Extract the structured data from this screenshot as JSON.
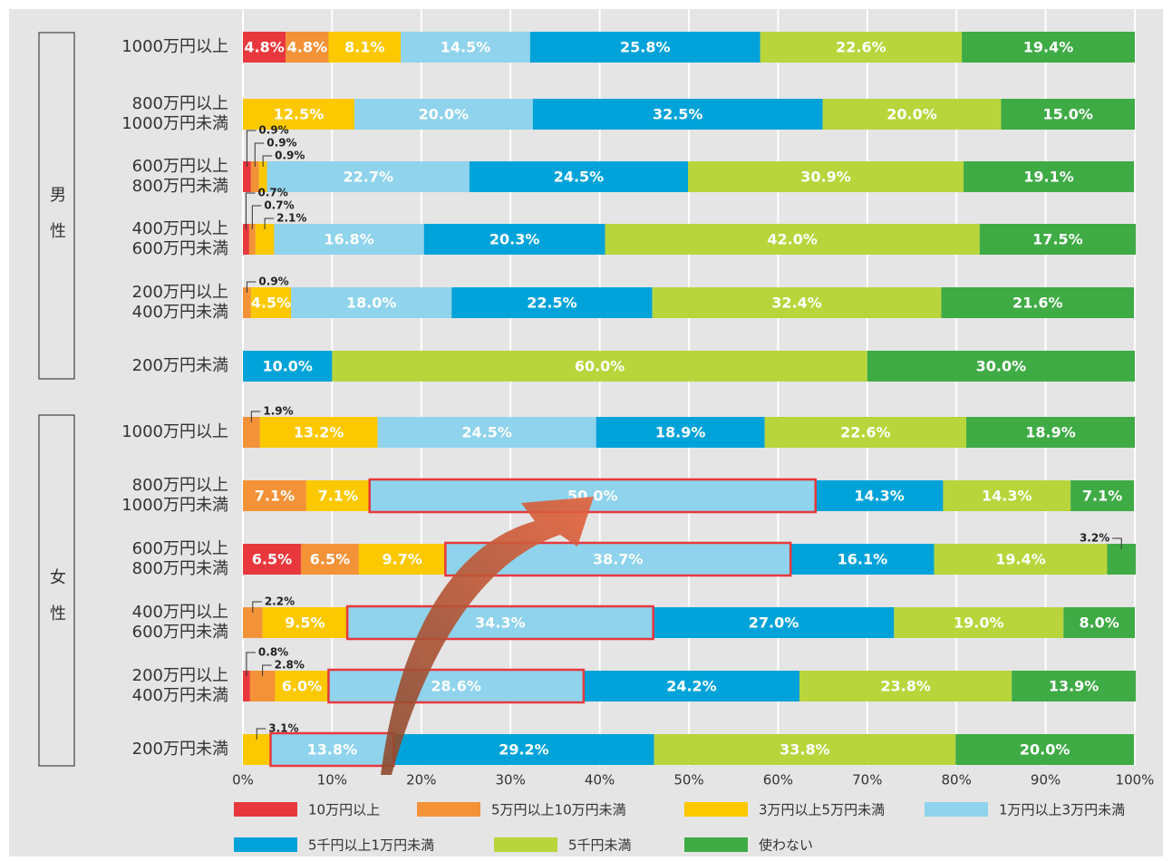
{
  "chart_data": {
    "type": "stacked-barh",
    "groups": [
      "男性",
      "女性"
    ],
    "categories": [
      "1000万円以上",
      "800万円以上\n1000万円未満",
      "600万円以上\n800万円未満",
      "400万円以上\n600万円未満",
      "200万円以上\n400万円未満",
      "200万円未満",
      "1000万円以上",
      "800万円以上\n1000万円未満",
      "600万円以上\n800万円未満",
      "400万円以上\n600万円未満",
      "200万円以上\n400万円未満",
      "200万円未満"
    ],
    "series": [
      {
        "name": "10万円以上",
        "color": "#e8383d",
        "values": [
          4.8,
          null,
          0.9,
          0.7,
          null,
          null,
          null,
          null,
          6.5,
          null,
          0.8,
          null
        ],
        "value_labels": [
          "4.8%",
          null,
          "0.9%",
          "0.7%",
          null,
          null,
          null,
          null,
          "6.5%",
          null,
          "0.8%",
          null
        ]
      },
      {
        "name": "5万円以上10万円未満",
        "color": "#f39237",
        "values": [
          4.8,
          null,
          0.9,
          0.7,
          0.9,
          null,
          1.9,
          7.1,
          6.5,
          2.2,
          2.8,
          null
        ],
        "value_labels": [
          "4.8%",
          null,
          "0.9%",
          "0.7%",
          "0.9%",
          null,
          "1.9%",
          "7.1%",
          "6.5%",
          "2.2%",
          "2.8%",
          null
        ]
      },
      {
        "name": "3万円以上5万円未満",
        "color": "#fcc800",
        "values": [
          8.1,
          12.5,
          0.9,
          2.1,
          4.5,
          null,
          13.2,
          7.1,
          9.7,
          9.5,
          6.0,
          3.1
        ],
        "value_labels": [
          "8.1%",
          "12.5%",
          "0.9%",
          "2.1%",
          "4.5%",
          null,
          "13.2%",
          "7.1%",
          "9.7%",
          "9.5%",
          "6.0%",
          "3.1%"
        ]
      },
      {
        "name": "1万円以上3万円未満",
        "color": "#8fd3ec",
        "values": [
          14.5,
          20.0,
          22.7,
          16.8,
          18.0,
          null,
          24.5,
          50.0,
          38.7,
          34.3,
          28.6,
          13.8
        ],
        "value_labels": [
          "14.5%",
          "20.0%",
          "22.7%",
          "16.8%",
          "18.0%",
          null,
          "24.5%",
          "50.0%",
          "38.7%",
          "34.3%",
          "28.6%",
          "13.8%"
        ]
      },
      {
        "name": "5千円以上1万円未満",
        "color": "#00a3d9",
        "values": [
          25.8,
          32.5,
          24.5,
          20.3,
          22.5,
          10.0,
          18.9,
          14.3,
          16.1,
          27.0,
          24.2,
          29.2
        ],
        "value_labels": [
          "25.8%",
          "32.5%",
          "24.5%",
          "20.3%",
          "22.5%",
          "10.0%",
          "18.9%",
          "14.3%",
          "16.1%",
          "27.0%",
          "24.2%",
          "29.2%"
        ]
      },
      {
        "name": "5千円未満",
        "color": "#b8d53b",
        "values": [
          22.6,
          20.0,
          30.9,
          42.0,
          32.4,
          60.0,
          22.6,
          14.3,
          19.4,
          19.0,
          23.8,
          33.8
        ],
        "value_labels": [
          "22.6%",
          "20.0%",
          "30.9%",
          "42.0%",
          "32.4%",
          "60.0%",
          "22.6%",
          "14.3%",
          "19.4%",
          "19.0%",
          "23.8%",
          "33.8%"
        ]
      },
      {
        "name": "使わない",
        "color": "#3fab45",
        "values": [
          19.4,
          15.0,
          19.1,
          17.5,
          21.6,
          30.0,
          18.9,
          7.1,
          3.2,
          8.0,
          13.9,
          20.0
        ],
        "value_labels": [
          "19.4%",
          "15.0%",
          "19.1%",
          "17.5%",
          "21.6%",
          "30.0%",
          "18.9%",
          "7.1%",
          "3.2%",
          "8.0%",
          "13.9%",
          "20.0%"
        ]
      }
    ],
    "xlim": [
      0,
      100
    ],
    "xticks": [
      {
        "value": 0,
        "label": "0%"
      },
      {
        "value": 10,
        "label": "10%"
      },
      {
        "value": 20,
        "label": "20%"
      },
      {
        "value": 30,
        "label": "30%"
      },
      {
        "value": 40,
        "label": "40%"
      },
      {
        "value": 50,
        "label": "50%"
      },
      {
        "value": 60,
        "label": "60%"
      },
      {
        "value": 70,
        "label": "70%"
      },
      {
        "value": 80,
        "label": "80%"
      },
      {
        "value": 90,
        "label": "90%"
      },
      {
        "value": 100,
        "label": "100%"
      }
    ],
    "grid": true
  }
}
